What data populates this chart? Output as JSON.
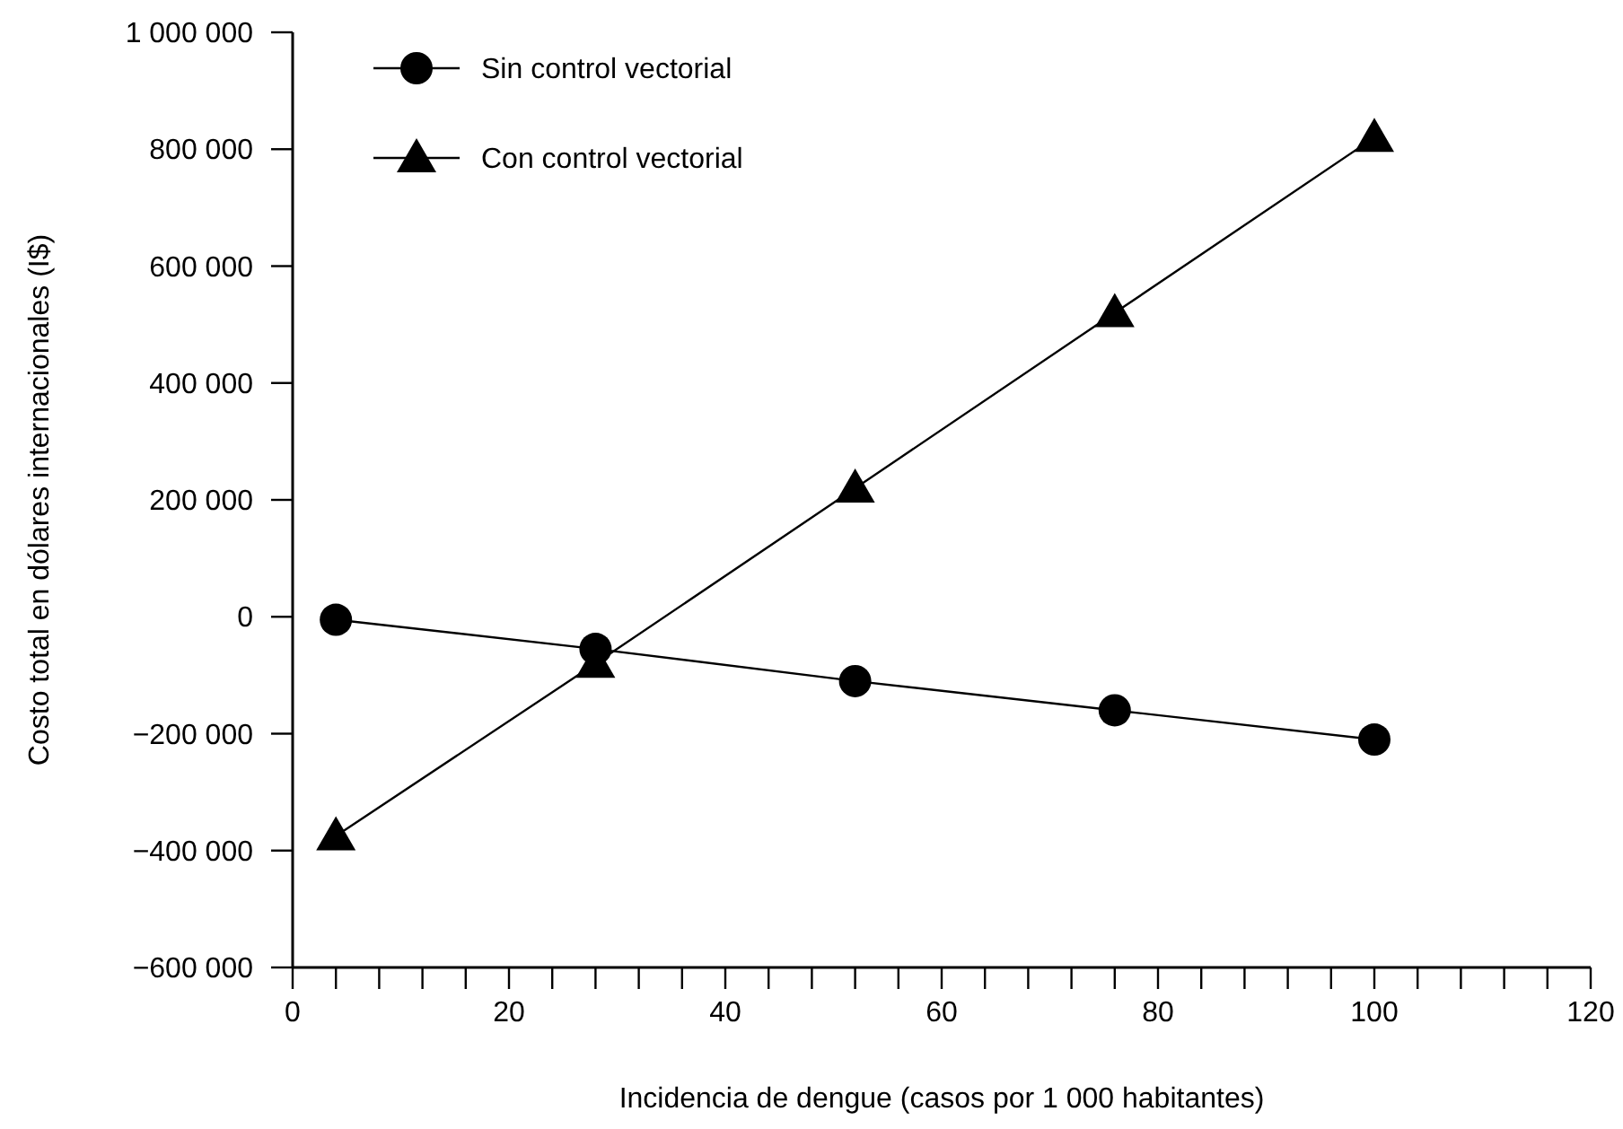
{
  "chart_data": {
    "type": "line",
    "xlabel": "Incidencia de dengue (casos por 1 000 habitantes)",
    "ylabel": "Costo total en dólares internacionales (I$)",
    "x": [
      4,
      28,
      52,
      76,
      100
    ],
    "series": [
      {
        "name": "Sin control vectorial",
        "color": "#000000",
        "marker": "circle",
        "values": [
          -5000,
          -55000,
          -110000,
          -160000,
          -210000
        ]
      },
      {
        "name": "Con control vectorial",
        "color": "#000000",
        "marker": "triangle",
        "values": [
          -375000,
          -80000,
          220000,
          520000,
          820000
        ]
      }
    ],
    "xlim": [
      0,
      120
    ],
    "xticks": [
      0,
      {
        "value": 4,
        "label": null
      },
      {
        "value": 8,
        "label": null
      },
      {
        "value": 12,
        "label": null
      },
      {
        "value": 16,
        "label": null
      },
      20,
      {
        "value": 24,
        "label": null
      },
      {
        "value": 28,
        "label": null
      },
      {
        "value": 32,
        "label": null
      },
      {
        "value": 36,
        "label": null
      },
      40,
      {
        "value": 44,
        "label": null
      },
      {
        "value": 48,
        "label": null
      },
      {
        "value": 52,
        "label": null
      },
      {
        "value": 56,
        "label": null
      },
      60,
      {
        "value": 64,
        "label": null
      },
      {
        "value": 68,
        "label": null
      },
      {
        "value": 72,
        "label": null
      },
      {
        "value": 76,
        "label": null
      },
      80,
      {
        "value": 84,
        "label": null
      },
      {
        "value": 88,
        "label": null
      },
      {
        "value": 92,
        "label": null
      },
      {
        "value": 96,
        "label": null
      },
      100,
      {
        "value": 104,
        "label": null
      },
      {
        "value": 108,
        "label": null
      },
      {
        "value": 112,
        "label": null
      },
      {
        "value": 116,
        "label": null
      },
      120
    ],
    "ylim": [
      -600000,
      1000000
    ],
    "yticks": [
      {
        "value": -600000,
        "label": "−600 000"
      },
      {
        "value": -400000,
        "label": "−400 000"
      },
      {
        "value": -200000,
        "label": "−200 000"
      },
      0,
      {
        "value": 200000,
        "label": "200 000"
      },
      {
        "value": 400000,
        "label": "400 000"
      },
      {
        "value": 600000,
        "label": "600 000"
      },
      {
        "value": 800000,
        "label": "800 000"
      },
      {
        "value": 1000000,
        "label": "1 000 000"
      }
    ],
    "grid": false,
    "legend": "top left",
    "line_style": "solid"
  }
}
